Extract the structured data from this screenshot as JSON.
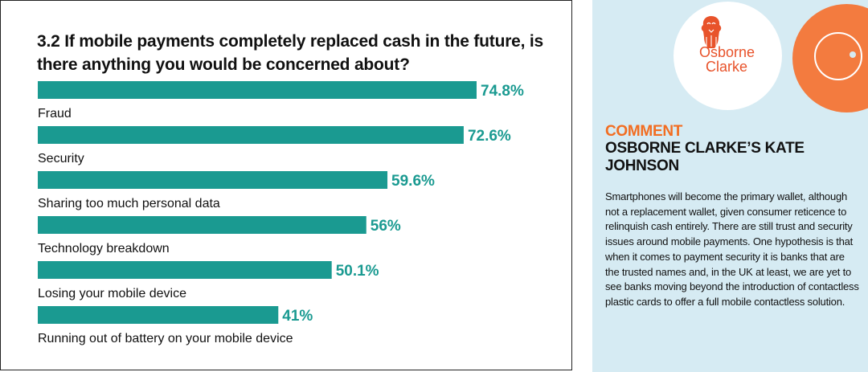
{
  "chart_data": {
    "type": "bar",
    "orientation": "horizontal",
    "title": "3.2 If mobile payments completely replaced cash in the future, is there anything you would be concerned about?",
    "categories": [
      "Fraud",
      "Security",
      "Sharing too much personal data",
      "Technology breakdown",
      "Losing your mobile device",
      "Running out of battery on your mobile device"
    ],
    "values": [
      74.8,
      72.6,
      59.6,
      56,
      50.1,
      41
    ],
    "value_labels": [
      "74.8%",
      "72.6%",
      "59.6%",
      "56%",
      "50.1%",
      "41%"
    ],
    "bar_color": "#1a9a91",
    "value_color": "#1a9a91",
    "grid": false,
    "legend": "none"
  },
  "sidebar": {
    "logo_line1": "Osborne",
    "logo_line2": "Clarke",
    "comment_label": "COMMENT",
    "comment_author": "OSBORNE CLARKE’S KATE JOHNSON",
    "comment_body": "Smartphones will become the primary wallet, although not a replacement wallet, given consumer reticence to relinquish cash entirely. There are still trust and security issues around mobile payments. One hypothesis is that when it comes to payment security it is banks that are the trusted names and, in the UK at least, we are yet to see banks moving beyond the introduction of contactless plastic cards to offer a full mobile contactless solution.",
    "accent_color": "#f26d21",
    "background_color": "#d6ebf3"
  }
}
